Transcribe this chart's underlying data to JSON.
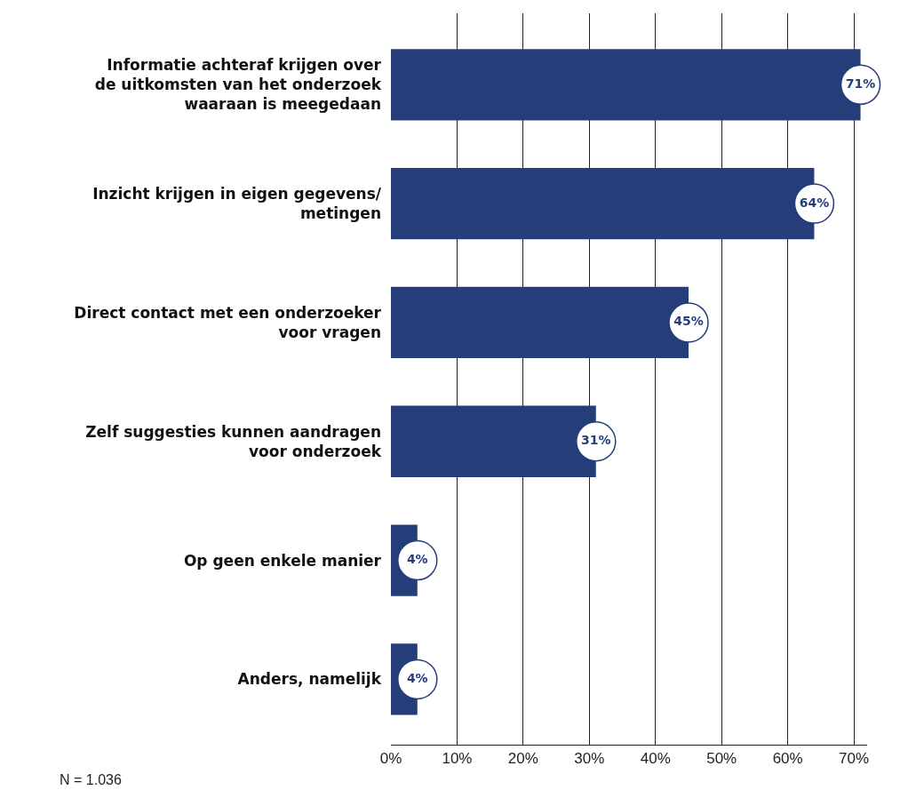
{
  "chart_data": {
    "type": "bar",
    "orientation": "horizontal",
    "categories": [
      "Informatie achteraf krijgen over de uitkomsten van het onderzoek waaraan is meegedaan",
      "Inzicht krijgen in eigen gegevens/metingen",
      "Direct contact met een onderzoeker voor vragen",
      "Zelf suggesties kunnen aandragen voor onderzoek",
      "Op geen enkele manier",
      "Anders, namelijk"
    ],
    "values": [
      71,
      64,
      45,
      31,
      4,
      4
    ],
    "color": "#253d78",
    "value_labels": [
      "71%",
      "64%",
      "45%",
      "31%",
      "4%",
      "4%"
    ],
    "xlim": [
      0,
      72
    ],
    "xticks": [
      {
        "value": 0,
        "label": "0%"
      },
      {
        "value": 10,
        "label": "10%"
      },
      {
        "value": 20,
        "label": "20%"
      },
      {
        "value": 30,
        "label": "30%"
      },
      {
        "value": 40,
        "label": "40%"
      },
      {
        "value": 50,
        "label": "50%"
      },
      {
        "value": 60,
        "label": "60%"
      },
      {
        "value": 70,
        "label": "70%"
      }
    ],
    "grid": "x",
    "annotations": [
      "N = 1.036"
    ]
  }
}
